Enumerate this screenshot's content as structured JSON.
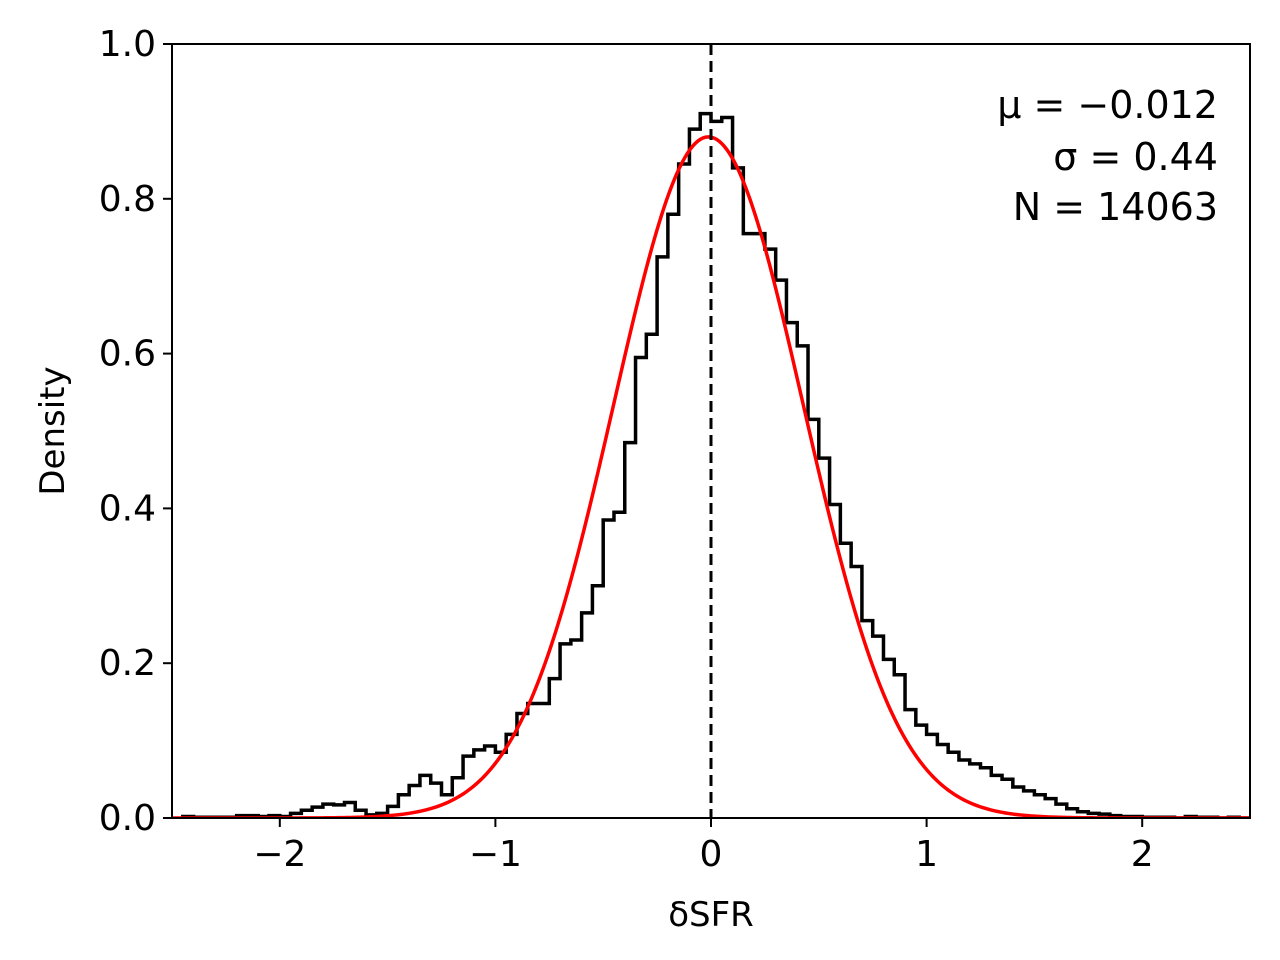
{
  "chart_data": {
    "type": "histogram",
    "xlabel": "δSFR",
    "ylabel": "Density",
    "xlim": [
      -2.5,
      2.5
    ],
    "ylim": [
      0,
      1.0
    ],
    "xticks": [
      -2,
      -1,
      0,
      1,
      2
    ],
    "xtick_labels": [
      "−2",
      "−1",
      "0",
      "1",
      "2"
    ],
    "yticks": [
      0.0,
      0.2,
      0.4,
      0.6,
      0.8,
      1.0
    ],
    "ytick_labels": [
      "0.0",
      "0.2",
      "0.4",
      "0.6",
      "0.8",
      "1.0"
    ],
    "grid": false,
    "reference_line": {
      "x": 0,
      "style": "dashed",
      "color": "#000000"
    },
    "annotations": [
      "μ = −0.012",
      "σ = 0.44",
      "N = 14063"
    ],
    "series": [
      {
        "kind": "step-histogram",
        "color": "#000000",
        "bin_edges": [
          -2.45,
          -2.4,
          -2.35,
          -2.3,
          -2.25,
          -2.2,
          -2.15,
          -2.1,
          -2.05,
          -2.0,
          -1.95,
          -1.9,
          -1.85,
          -1.8,
          -1.75,
          -1.7,
          -1.65,
          -1.6,
          -1.55,
          -1.5,
          -1.45,
          -1.4,
          -1.35,
          -1.3,
          -1.25,
          -1.2,
          -1.15,
          -1.1,
          -1.05,
          -1.0,
          -0.95,
          -0.9,
          -0.85,
          -0.8,
          -0.75,
          -0.7,
          -0.65,
          -0.6,
          -0.55,
          -0.5,
          -0.45,
          -0.4,
          -0.35,
          -0.3,
          -0.25,
          -0.2,
          -0.15,
          -0.1,
          -0.05,
          0.0,
          0.05,
          0.1,
          0.15,
          0.2,
          0.25,
          0.3,
          0.35,
          0.4,
          0.45,
          0.5,
          0.55,
          0.6,
          0.65,
          0.7,
          0.75,
          0.8,
          0.85,
          0.9,
          0.95,
          1.0,
          1.05,
          1.1,
          1.15,
          1.2,
          1.25,
          1.3,
          1.35,
          1.4,
          1.45,
          1.5,
          1.55,
          1.6,
          1.65,
          1.7,
          1.75,
          1.8,
          1.85,
          1.9,
          1.95,
          2.0,
          2.05,
          2.1,
          2.15,
          2.2,
          2.25,
          2.3,
          2.35,
          2.4,
          2.45,
          2.5
        ],
        "densities": [
          0.002,
          0.001,
          0.001,
          0.001,
          0.001,
          0.003,
          0.003,
          0.002,
          0.003,
          0.002,
          0.006,
          0.01,
          0.014,
          0.018,
          0.017,
          0.02,
          0.01,
          0.004,
          0.006,
          0.015,
          0.03,
          0.042,
          0.055,
          0.045,
          0.03,
          0.052,
          0.08,
          0.088,
          0.093,
          0.085,
          0.108,
          0.135,
          0.148,
          0.148,
          0.18,
          0.225,
          0.23,
          0.265,
          0.3,
          0.385,
          0.395,
          0.485,
          0.595,
          0.625,
          0.725,
          0.78,
          0.845,
          0.89,
          0.91,
          0.9,
          0.905,
          0.84,
          0.755,
          0.755,
          0.735,
          0.695,
          0.64,
          0.61,
          0.515,
          0.465,
          0.405,
          0.355,
          0.325,
          0.255,
          0.235,
          0.205,
          0.185,
          0.14,
          0.12,
          0.108,
          0.095,
          0.085,
          0.075,
          0.07,
          0.065,
          0.055,
          0.05,
          0.04,
          0.035,
          0.03,
          0.025,
          0.018,
          0.012,
          0.008,
          0.006,
          0.005,
          0.003,
          0.002,
          0.002,
          0.001,
          0.001,
          0.001,
          0.0,
          0.002,
          0.001,
          0.001,
          0.0,
          0.001,
          0.0
        ]
      },
      {
        "kind": "gaussian-fit",
        "color": "#ff0000",
        "mu": -0.012,
        "sigma": 0.44,
        "amplitude": 0.88
      }
    ]
  }
}
